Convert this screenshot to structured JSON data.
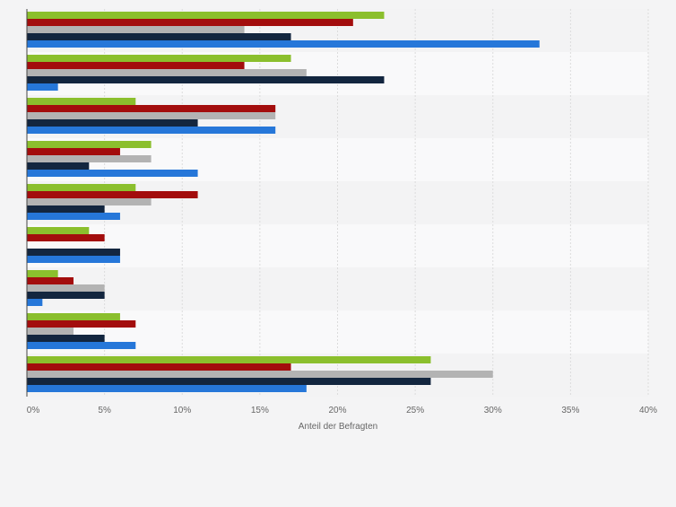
{
  "chart_data": {
    "type": "bar",
    "orientation": "horizontal",
    "title": "",
    "xlabel": "Anteil der Befragten",
    "ylabel": "",
    "xlim": [
      0,
      40
    ],
    "x_ticks": [
      0,
      5,
      10,
      15,
      20,
      25,
      30,
      35,
      40
    ],
    "x_tick_labels": [
      "0%",
      "5%",
      "10%",
      "15%",
      "20%",
      "25%",
      "30%",
      "35%",
      "40%"
    ],
    "grid": true,
    "legend": "none",
    "categories_count": 9,
    "series": [
      {
        "name": "series-green",
        "color": "#8bbf2d",
        "values": [
          23,
          17,
          7,
          8,
          7,
          4,
          2,
          6,
          26
        ]
      },
      {
        "name": "series-red",
        "color": "#a30d0d",
        "values": [
          21,
          14,
          16,
          6,
          11,
          5,
          3,
          7,
          17
        ]
      },
      {
        "name": "series-gray",
        "color": "#b3b3b3",
        "values": [
          14,
          18,
          16,
          8,
          8,
          0,
          5,
          3,
          30
        ]
      },
      {
        "name": "series-navy",
        "color": "#13263f",
        "values": [
          17,
          23,
          11,
          4,
          5,
          6,
          5,
          5,
          26
        ]
      },
      {
        "name": "series-blue",
        "color": "#2677d9",
        "values": [
          33,
          2,
          16,
          11,
          6,
          6,
          1,
          7,
          18
        ]
      }
    ]
  },
  "colors": {
    "background": "#f4f4f5",
    "band_dark": "#f3f3f4",
    "band_light": "#f9f9fa",
    "grid": "#dcdcdc",
    "axis": "#444444",
    "tick_text": "#666666"
  }
}
